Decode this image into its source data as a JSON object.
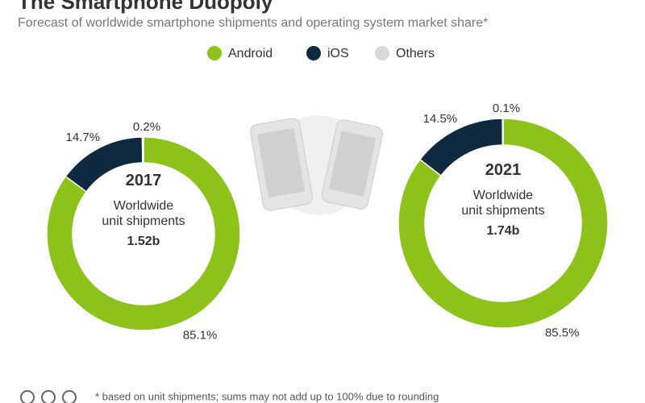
{
  "title": "The Smartphone Duopoly",
  "subtitle": "Forecast of worldwide smartphone shipments and operating system market share*",
  "footnote": "* based on unit shipments; sums may not add up to 100% due to rounding",
  "chart_data": [
    {
      "type": "donut",
      "title": "2017",
      "center_label": "Worldwide unit shipments",
      "total": "1.52b",
      "categories": [
        "Android",
        "iOS",
        "Others"
      ],
      "colors": [
        "#8cc21a",
        "#0f2a3f",
        "#d9d9d9"
      ],
      "values": [
        85.1,
        14.7,
        0.2
      ],
      "value_labels": [
        "85.1%",
        "14.7%",
        "0.2%"
      ]
    },
    {
      "type": "donut",
      "title": "2021",
      "center_label": "Worldwide unit shipments",
      "total": "1.74b",
      "categories": [
        "Android",
        "iOS",
        "Others"
      ],
      "colors": [
        "#8cc21a",
        "#0f2a3f",
        "#d9d9d9"
      ],
      "values": [
        85.5,
        14.5,
        0.1
      ],
      "value_labels": [
        "85.5%",
        "14.5%",
        "0.1%"
      ]
    }
  ]
}
